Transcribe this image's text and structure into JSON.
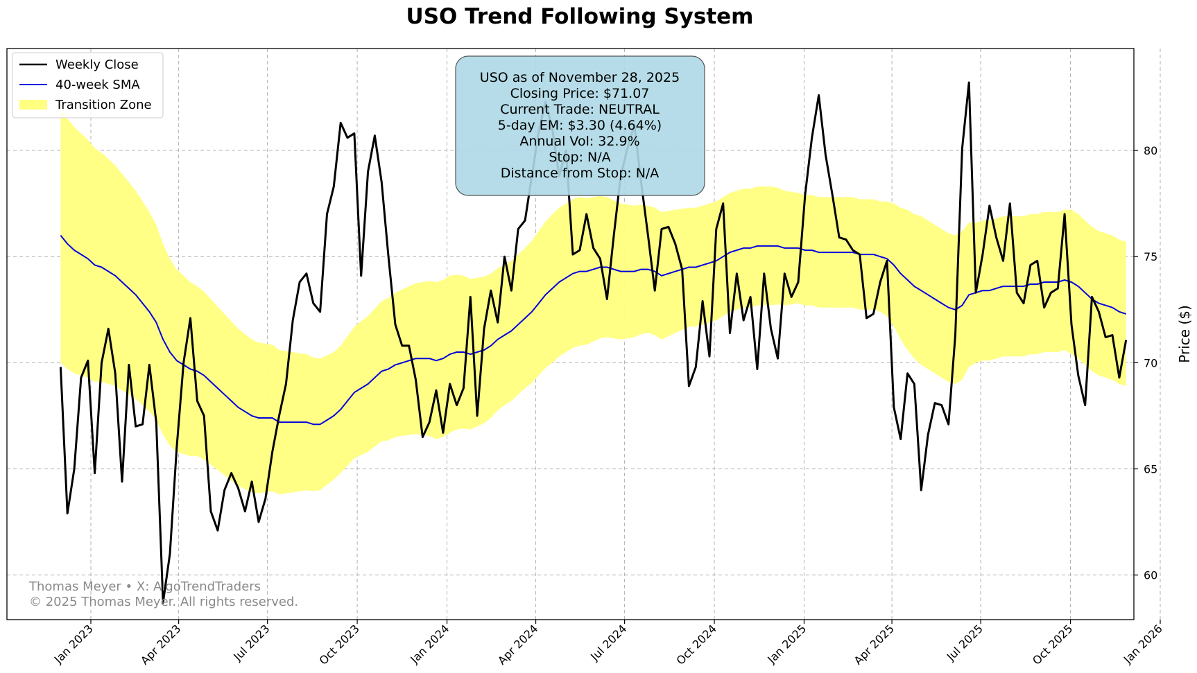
{
  "chart_data": {
    "type": "line",
    "title": "USO Trend Following System",
    "ylabel": "Price ($)",
    "xlabel": "",
    "ylim": [
      57.9,
      84.8
    ],
    "yticks": [
      60,
      65,
      70,
      75,
      80
    ],
    "xlim_days": [
      -55,
      1100
    ],
    "xticks": [
      {
        "label": "Jan 2023",
        "day": 31
      },
      {
        "label": "Apr 2023",
        "day": 121
      },
      {
        "label": "Jul 2023",
        "day": 212
      },
      {
        "label": "Oct 2023",
        "day": 304
      },
      {
        "label": "Jan 2024",
        "day": 396
      },
      {
        "label": "Apr 2024",
        "day": 487
      },
      {
        "label": "Jul 2024",
        "day": 578
      },
      {
        "label": "Oct 2024",
        "day": 670
      },
      {
        "label": "Jan 2025",
        "day": 762
      },
      {
        "label": "Apr 2025",
        "day": 852
      },
      {
        "label": "Jul 2025",
        "day": 943
      },
      {
        "label": "Oct 2025",
        "day": 1035
      },
      {
        "label": "Jan 2026",
        "day": 1127
      }
    ],
    "start_day": 0,
    "week_step_days": 7,
    "legend": {
      "position": "upper-left",
      "entries": [
        {
          "label": "Weekly Close",
          "color": "#000000",
          "kind": "line"
        },
        {
          "label": "40-week SMA",
          "color": "#0000dd",
          "kind": "line"
        },
        {
          "label": "Transition Zone",
          "color": "#ffff80",
          "kind": "patch"
        }
      ]
    },
    "series": [
      {
        "name": "Weekly Close",
        "color": "#000000",
        "values": [
          69.8,
          62.9,
          65.0,
          69.3,
          70.1,
          64.8,
          70.0,
          71.6,
          69.5,
          64.4,
          69.9,
          67.0,
          67.1,
          69.9,
          67.2,
          58.7,
          61.0,
          66.0,
          70.0,
          72.1,
          68.2,
          67.5,
          63.0,
          62.1,
          64.0,
          64.8,
          64.1,
          63.0,
          64.4,
          62.5,
          63.6,
          65.8,
          67.5,
          69.0,
          72.0,
          73.8,
          74.2,
          72.8,
          72.4,
          77.0,
          78.3,
          81.3,
          80.6,
          80.8,
          74.1,
          79.0,
          80.7,
          78.5,
          75.0,
          71.8,
          70.8,
          70.8,
          69.2,
          66.5,
          67.2,
          68.7,
          66.7,
          69.0,
          68.0,
          68.8,
          73.1,
          67.5,
          71.6,
          73.4,
          71.9,
          75.0,
          73.4,
          76.3,
          76.7,
          78.8,
          80.9,
          82.3,
          81.0,
          78.8,
          80.0,
          75.1,
          75.3,
          77.0,
          75.4,
          74.9,
          73.0,
          76.0,
          78.8,
          80.1,
          81.2,
          78.5,
          76.0,
          73.4,
          76.3,
          76.4,
          75.6,
          74.4,
          68.9,
          69.8,
          72.9,
          70.3,
          76.3,
          77.5,
          71.4,
          74.2,
          72.0,
          73.1,
          69.7,
          74.2,
          71.6,
          70.2,
          74.2,
          73.1,
          73.8,
          77.9,
          80.6,
          82.6,
          79.8,
          77.9,
          75.9,
          75.8,
          75.3,
          75.1,
          72.1,
          72.3,
          73.8,
          74.8,
          67.9,
          66.4,
          69.5,
          69.0,
          64.0,
          66.6,
          68.1,
          68.0,
          67.1,
          71.3,
          80.1,
          83.2,
          73.3,
          75.1,
          77.4,
          75.9,
          74.8,
          77.5,
          73.3,
          72.8,
          74.6,
          74.8,
          72.6,
          73.3,
          73.5,
          77.0,
          71.8,
          69.4,
          68.0,
          73.1,
          72.4,
          71.2,
          71.3,
          69.3,
          71.07
        ]
      },
      {
        "name": "40-week SMA",
        "color": "#0000dd",
        "values": [
          76.0,
          75.6,
          75.3,
          75.1,
          74.9,
          74.6,
          74.5,
          74.3,
          74.1,
          73.8,
          73.5,
          73.2,
          72.8,
          72.4,
          71.9,
          71.1,
          70.5,
          70.1,
          69.9,
          69.7,
          69.6,
          69.4,
          69.1,
          68.8,
          68.5,
          68.2,
          67.9,
          67.7,
          67.5,
          67.4,
          67.4,
          67.4,
          67.2,
          67.2,
          67.2,
          67.2,
          67.2,
          67.1,
          67.1,
          67.3,
          67.5,
          67.8,
          68.2,
          68.6,
          68.8,
          69.0,
          69.3,
          69.6,
          69.7,
          69.9,
          70.0,
          70.1,
          70.2,
          70.2,
          70.2,
          70.1,
          70.2,
          70.4,
          70.5,
          70.5,
          70.4,
          70.5,
          70.6,
          70.8,
          71.1,
          71.3,
          71.5,
          71.8,
          72.1,
          72.4,
          72.8,
          73.2,
          73.5,
          73.8,
          74.0,
          74.2,
          74.3,
          74.3,
          74.4,
          74.5,
          74.5,
          74.4,
          74.3,
          74.3,
          74.3,
          74.4,
          74.4,
          74.3,
          74.1,
          74.2,
          74.3,
          74.4,
          74.5,
          74.5,
          74.6,
          74.7,
          74.8,
          75.0,
          75.2,
          75.3,
          75.4,
          75.4,
          75.5,
          75.5,
          75.5,
          75.5,
          75.4,
          75.4,
          75.4,
          75.3,
          75.3,
          75.2,
          75.2,
          75.2,
          75.2,
          75.2,
          75.2,
          75.1,
          75.1,
          75.1,
          75.0,
          74.9,
          74.6,
          74.2,
          73.9,
          73.6,
          73.4,
          73.2,
          73.0,
          72.8,
          72.6,
          72.5,
          72.7,
          73.2,
          73.3,
          73.4,
          73.4,
          73.5,
          73.6,
          73.6,
          73.6,
          73.6,
          73.7,
          73.7,
          73.8,
          73.8,
          73.8,
          73.9,
          73.8,
          73.6,
          73.3,
          73.0,
          72.8,
          72.7,
          72.6,
          72.4,
          72.3
        ]
      }
    ],
    "zone_half_width": [
      6.0,
      5.9,
      5.8,
      5.7,
      5.6,
      5.5,
      5.4,
      5.3,
      5.2,
      5.1,
      5.0,
      4.9,
      4.8,
      4.7,
      4.6,
      4.5,
      4.4,
      4.3,
      4.2,
      4.1,
      4.0,
      3.95,
      3.9,
      3.85,
      3.8,
      3.75,
      3.7,
      3.65,
      3.6,
      3.55,
      3.5,
      3.45,
      3.4,
      3.35,
      3.3,
      3.25,
      3.2,
      3.15,
      3.1,
      3.05,
      3.0,
      3.0,
      3.05,
      3.1,
      3.15,
      3.2,
      3.25,
      3.3,
      3.35,
      3.4,
      3.45,
      3.5,
      3.55,
      3.6,
      3.65,
      3.7,
      3.7,
      3.7,
      3.65,
      3.6,
      3.55,
      3.5,
      3.45,
      3.4,
      3.35,
      3.3,
      3.3,
      3.3,
      3.3,
      3.35,
      3.4,
      3.45,
      3.5,
      3.5,
      3.5,
      3.5,
      3.5,
      3.45,
      3.4,
      3.35,
      3.3,
      3.25,
      3.2,
      3.15,
      3.1,
      3.05,
      3.0,
      3.0,
      3.0,
      2.95,
      2.9,
      2.85,
      2.8,
      2.8,
      2.8,
      2.8,
      2.8,
      2.8,
      2.8,
      2.8,
      2.8,
      2.8,
      2.8,
      2.8,
      2.8,
      2.75,
      2.7,
      2.65,
      2.6,
      2.6,
      2.6,
      2.6,
      2.6,
      2.6,
      2.6,
      2.6,
      2.6,
      2.6,
      2.6,
      2.6,
      2.6,
      2.7,
      2.9,
      3.1,
      3.3,
      3.4,
      3.5,
      3.5,
      3.5,
      3.5,
      3.5,
      3.5,
      3.5,
      3.4,
      3.3,
      3.3,
      3.3,
      3.3,
      3.3,
      3.3,
      3.3,
      3.3,
      3.3,
      3.3,
      3.3,
      3.3,
      3.3,
      3.3,
      3.4,
      3.4,
      3.4,
      3.4,
      3.4,
      3.4,
      3.4,
      3.4,
      3.4
    ]
  },
  "info_box": {
    "lines": [
      "USO as of November 28, 2025",
      "Closing Price: $71.07",
      "Current Trade: NEUTRAL",
      "5-day EM: $3.30 (4.64%)",
      "Annual Vol: 32.9%",
      "Stop: N/A",
      "Distance from Stop: N/A"
    ],
    "fill_color": "#add8e6"
  },
  "watermark": {
    "line1": "Thomas Meyer • X: AlgoTrendTraders",
    "line2": "© 2025 Thomas Meyer. All rights reserved."
  }
}
